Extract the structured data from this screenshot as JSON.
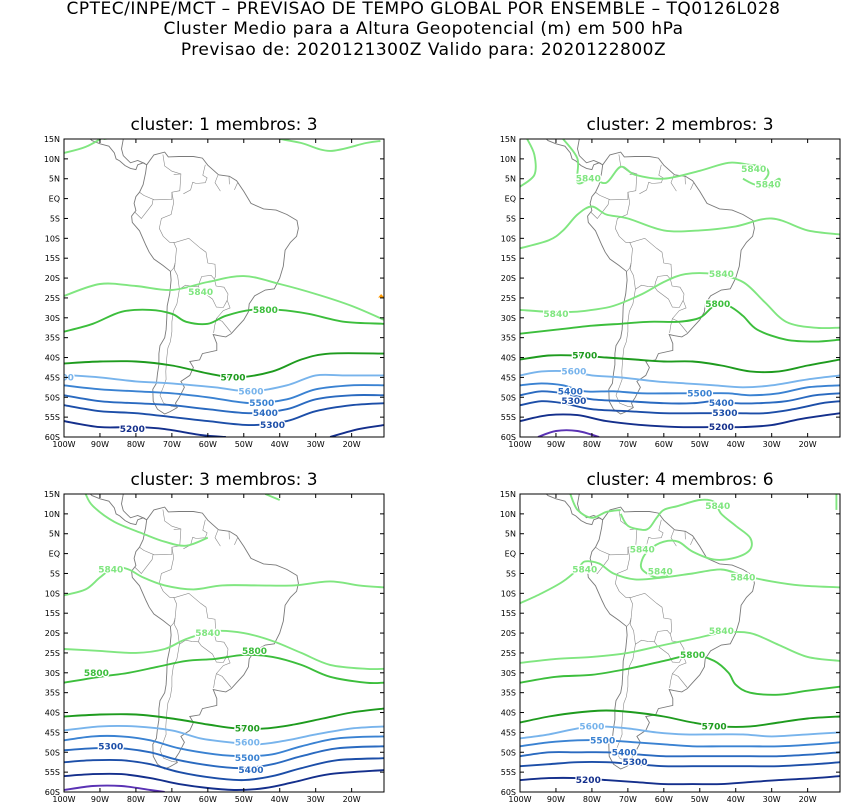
{
  "header": {
    "line1": "CPTEC/INPE/MCT – PREVISAO DE TEMPO GLOBAL POR ENSEMBLE – TQ0126L028",
    "line2": "Cluster Medio para a Altura Geopotencial (m) em 500 hPa",
    "line3": "Previsao de: 2020121300Z    Valido para: 2020122800Z"
  },
  "axes": {
    "lat_labels": [
      "15N",
      "10N",
      "5N",
      "EQ",
      "5S",
      "10S",
      "15S",
      "20S",
      "25S",
      "30S",
      "35S",
      "40S",
      "45S",
      "50S",
      "55S",
      "60S"
    ],
    "lon_labels": [
      "100W",
      "90W",
      "80W",
      "70W",
      "60W",
      "50W",
      "40W",
      "30W",
      "20W"
    ]
  },
  "colors": {
    "c5840": "#80e680",
    "c5800": "#3cbe3c",
    "c5700": "#1e9b1e",
    "c5600": "#78b4ec",
    "c5500": "#3a82d2",
    "c5400": "#2a6ac0",
    "c5300": "#1c4ea8",
    "c5200": "#142f8c",
    "c5100": "#5a32b4",
    "coast": "#7a7a7a"
  },
  "panels": [
    {
      "title": "cluster: 1   membros: 3",
      "contour_labels": [
        {
          "text": "5840",
          "lon": -62,
          "lat": -23.5
        },
        {
          "text": "5800",
          "lon": -44,
          "lat": -28
        },
        {
          "text": "5700",
          "lon": -53,
          "lat": -45
        },
        {
          "text": "5600",
          "lon": -48,
          "lat": -48.5
        },
        {
          "text": "5500",
          "lon": -45,
          "lat": -51.5
        },
        {
          "text": "5400",
          "lon": -44,
          "lat": -54
        },
        {
          "text": "5300",
          "lon": -42,
          "lat": -57
        },
        {
          "text": "5200",
          "lon": -81,
          "lat": -58
        },
        {
          "text": "00",
          "lon": -99,
          "lat": -45
        }
      ]
    },
    {
      "title": "cluster: 2   membros: 3",
      "contour_labels": [
        {
          "text": "5840",
          "lon": -81,
          "lat": 5
        },
        {
          "text": "5840",
          "lon": -35,
          "lat": 7.5
        },
        {
          "text": "5840",
          "lon": -31,
          "lat": 3.5
        },
        {
          "text": "5840",
          "lon": -44,
          "lat": -19
        },
        {
          "text": "5840",
          "lon": -90,
          "lat": -29
        },
        {
          "text": "5800",
          "lon": -45,
          "lat": -26.5
        },
        {
          "text": "5700",
          "lon": -82,
          "lat": -39.5
        },
        {
          "text": "5600",
          "lon": -85,
          "lat": -43.5
        },
        {
          "text": "5400",
          "lon": -86,
          "lat": -48.5
        },
        {
          "text": "5300",
          "lon": -85,
          "lat": -51
        },
        {
          "text": "5500",
          "lon": -50,
          "lat": -49
        },
        {
          "text": "5400",
          "lon": -44,
          "lat": -51.5
        },
        {
          "text": "5300",
          "lon": -43,
          "lat": -54
        },
        {
          "text": "5200",
          "lon": -44,
          "lat": -57.5
        }
      ]
    },
    {
      "title": "cluster: 3   membros: 3",
      "contour_labels": [
        {
          "text": "5840",
          "lon": -87,
          "lat": -4
        },
        {
          "text": "5840",
          "lon": -60,
          "lat": -20
        },
        {
          "text": "5800",
          "lon": -47,
          "lat": -24.5
        },
        {
          "text": "5800",
          "lon": -91,
          "lat": -30
        },
        {
          "text": "5700",
          "lon": -49,
          "lat": -44
        },
        {
          "text": "5600",
          "lon": -49,
          "lat": -47.5
        },
        {
          "text": "5300",
          "lon": -87,
          "lat": -48.5
        },
        {
          "text": "5500",
          "lon": -49,
          "lat": -51.5
        },
        {
          "text": "5400",
          "lon": -48,
          "lat": -54.5
        }
      ]
    },
    {
      "title": "cluster: 4   membros: 6",
      "contour_labels": [
        {
          "text": "5840",
          "lon": -45,
          "lat": 12
        },
        {
          "text": "5840",
          "lon": -66,
          "lat": 1
        },
        {
          "text": "5840",
          "lon": -82,
          "lat": -4
        },
        {
          "text": "5840",
          "lon": -61,
          "lat": -4.5
        },
        {
          "text": "5840",
          "lon": -38,
          "lat": -6
        },
        {
          "text": "5840",
          "lon": -44,
          "lat": -19.5
        },
        {
          "text": "5800",
          "lon": -52,
          "lat": -25.5
        },
        {
          "text": "5700",
          "lon": -46,
          "lat": -43.5
        },
        {
          "text": "5600",
          "lon": -80,
          "lat": -43.5
        },
        {
          "text": "5500",
          "lon": -77,
          "lat": -47
        },
        {
          "text": "5400",
          "lon": -71,
          "lat": -50
        },
        {
          "text": "5300",
          "lon": -68,
          "lat": -52.5
        },
        {
          "text": "5200",
          "lon": -81,
          "lat": -57
        }
      ]
    }
  ]
}
